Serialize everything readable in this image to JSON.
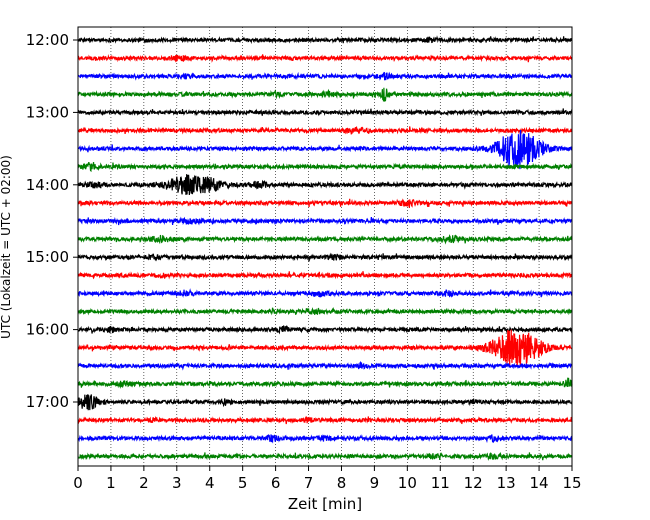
{
  "chart_data": {
    "type": "line",
    "title": "",
    "xlabel": "Zeit  [min]",
    "ylabel": "UTC (Lokalzeit = UTC + 02:00)",
    "xlim": [
      0,
      15
    ],
    "x_ticks": [
      "0",
      "1",
      "2",
      "3",
      "4",
      "5",
      "6",
      "7",
      "8",
      "9",
      "10",
      "11",
      "12",
      "13",
      "14",
      "15"
    ],
    "y_tick_labels": [
      "12:00",
      "13:00",
      "14:00",
      "15:00",
      "16:00",
      "17:00"
    ],
    "grid": "vertical dotted lines at each minute",
    "trace_colors": [
      "#000000",
      "#ff0000",
      "#0000ff",
      "#008000"
    ],
    "traces": [
      {
        "start": "12:00",
        "color": "#000000",
        "events": [
          {
            "t": 10.7,
            "amp": 0.3,
            "dur": 0.3
          }
        ]
      },
      {
        "start": "12:15",
        "color": "#ff0000",
        "events": [
          {
            "t": 3.0,
            "amp": 0.25,
            "dur": 0.4
          }
        ]
      },
      {
        "start": "12:30",
        "color": "#0000ff",
        "events": [
          {
            "t": 9.3,
            "amp": 0.5,
            "dur": 0.3
          },
          {
            "t": 3.3,
            "amp": 0.25,
            "dur": 0.3
          }
        ]
      },
      {
        "start": "12:45",
        "color": "#008000",
        "events": [
          {
            "t": 9.3,
            "amp": 1.0,
            "dur": 0.15
          },
          {
            "t": 6.0,
            "amp": 0.3,
            "dur": 0.3
          },
          {
            "t": 7.6,
            "amp": 0.3,
            "dur": 0.3
          }
        ]
      },
      {
        "start": "13:00",
        "color": "#000000",
        "events": []
      },
      {
        "start": "13:15",
        "color": "#ff0000",
        "events": [
          {
            "t": 8.4,
            "amp": 0.35,
            "dur": 0.5
          }
        ]
      },
      {
        "start": "13:30",
        "color": "#0000ff",
        "events": [
          {
            "t": 13.4,
            "amp": 3.2,
            "dur": 0.9
          }
        ]
      },
      {
        "start": "13:45",
        "color": "#008000",
        "events": [
          {
            "t": 0.4,
            "amp": 0.4,
            "dur": 0.4
          }
        ]
      },
      {
        "start": "14:00",
        "color": "#000000",
        "events": [
          {
            "t": 3.5,
            "amp": 1.6,
            "dur": 1.1
          },
          {
            "t": 5.5,
            "amp": 0.4,
            "dur": 0.4
          },
          {
            "t": 0.5,
            "amp": 0.3,
            "dur": 0.4
          }
        ]
      },
      {
        "start": "14:15",
        "color": "#ff0000",
        "events": [
          {
            "t": 10.0,
            "amp": 0.35,
            "dur": 0.4
          }
        ]
      },
      {
        "start": "14:30",
        "color": "#0000ff",
        "events": [
          {
            "t": 3.5,
            "amp": 0.3,
            "dur": 0.5
          }
        ]
      },
      {
        "start": "14:45",
        "color": "#008000",
        "events": [
          {
            "t": 2.5,
            "amp": 0.4,
            "dur": 0.4
          },
          {
            "t": 11.3,
            "amp": 0.4,
            "dur": 0.5
          }
        ]
      },
      {
        "start": "15:00",
        "color": "#000000",
        "events": [
          {
            "t": 2.3,
            "amp": 0.3,
            "dur": 0.3
          },
          {
            "t": 7.8,
            "amp": 0.3,
            "dur": 0.3
          }
        ]
      },
      {
        "start": "15:15",
        "color": "#ff0000",
        "events": [
          {
            "t": 2.5,
            "amp": 0.25,
            "dur": 0.3
          }
        ]
      },
      {
        "start": "15:30",
        "color": "#0000ff",
        "events": [
          {
            "t": 3.3,
            "amp": 0.4,
            "dur": 0.3
          },
          {
            "t": 7.3,
            "amp": 0.4,
            "dur": 0.3
          },
          {
            "t": 11.2,
            "amp": 0.3,
            "dur": 0.3
          }
        ]
      },
      {
        "start": "15:45",
        "color": "#008000",
        "events": [
          {
            "t": 7.2,
            "amp": 0.3,
            "dur": 0.3
          }
        ]
      },
      {
        "start": "16:00",
        "color": "#000000",
        "events": [
          {
            "t": 1.0,
            "amp": 0.35,
            "dur": 0.2
          },
          {
            "t": 6.2,
            "amp": 0.3,
            "dur": 0.3
          }
        ]
      },
      {
        "start": "16:15",
        "color": "#ff0000",
        "events": [
          {
            "t": 13.3,
            "amp": 3.0,
            "dur": 1.0
          }
        ]
      },
      {
        "start": "16:30",
        "color": "#0000ff",
        "events": [
          {
            "t": 8.6,
            "amp": 0.3,
            "dur": 0.3
          }
        ]
      },
      {
        "start": "16:45",
        "color": "#008000",
        "events": [
          {
            "t": 1.4,
            "amp": 0.35,
            "dur": 0.3
          },
          {
            "t": 14.9,
            "amp": 0.8,
            "dur": 0.2
          }
        ]
      },
      {
        "start": "17:00",
        "color": "#000000",
        "events": [
          {
            "t": 0.3,
            "amp": 1.2,
            "dur": 0.4
          },
          {
            "t": 4.5,
            "amp": 0.35,
            "dur": 0.2
          },
          {
            "t": 12.0,
            "amp": 0.5,
            "dur": 0.1
          }
        ]
      },
      {
        "start": "17:15",
        "color": "#ff0000",
        "events": [
          {
            "t": 2.3,
            "amp": 0.25,
            "dur": 0.2
          },
          {
            "t": 7.0,
            "amp": 0.25,
            "dur": 0.2
          }
        ]
      },
      {
        "start": "17:30",
        "color": "#0000ff",
        "events": [
          {
            "t": 5.9,
            "amp": 0.35,
            "dur": 0.3
          },
          {
            "t": 7.5,
            "amp": 0.3,
            "dur": 0.3
          },
          {
            "t": 12.6,
            "amp": 0.35,
            "dur": 0.3
          }
        ]
      },
      {
        "start": "17:45",
        "color": "#008000",
        "events": [
          {
            "t": 10.8,
            "amp": 0.3,
            "dur": 0.3
          },
          {
            "t": 12.6,
            "amp": 0.3,
            "dur": 0.3
          }
        ]
      }
    ]
  }
}
